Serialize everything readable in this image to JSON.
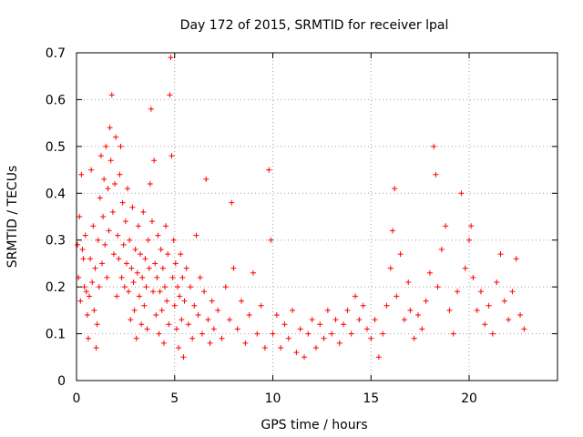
{
  "chart_data": {
    "type": "scatter",
    "title": "Day 172 of 2015, SRMTID for receiver lpal",
    "xlabel": "GPS time / hours",
    "ylabel": "SRMTID / TECUs",
    "xlim": [
      0,
      24.5
    ],
    "ylim": [
      0,
      0.7
    ],
    "x_ticks": [
      0,
      5,
      10,
      15,
      20
    ],
    "x_tick_labels": [
      "0",
      "5",
      "10",
      "15",
      "20"
    ],
    "y_ticks": [
      0,
      0.1,
      0.2,
      0.3,
      0.4,
      0.5,
      0.6,
      0.7
    ],
    "y_tick_labels": [
      "0",
      "0.1",
      "0.2",
      "0.3",
      "0.4",
      "0.5",
      "0.6",
      "0.7"
    ],
    "grid": true,
    "marker": "plus",
    "color": "#ff0000",
    "series": [
      {
        "name": "SRMTID",
        "points": [
          [
            0.05,
            0.29
          ],
          [
            0.1,
            0.22
          ],
          [
            0.15,
            0.35
          ],
          [
            0.2,
            0.17
          ],
          [
            0.25,
            0.44
          ],
          [
            0.3,
            0.28
          ],
          [
            0.35,
            0.26
          ],
          [
            0.4,
            0.2
          ],
          [
            0.45,
            0.31
          ],
          [
            0.5,
            0.19
          ],
          [
            0.55,
            0.14
          ],
          [
            0.6,
            0.09
          ],
          [
            0.65,
            0.18
          ],
          [
            0.7,
            0.26
          ],
          [
            0.75,
            0.45
          ],
          [
            0.8,
            0.21
          ],
          [
            0.85,
            0.33
          ],
          [
            0.9,
            0.15
          ],
          [
            0.95,
            0.24
          ],
          [
            1.0,
            0.07
          ],
          [
            1.05,
            0.12
          ],
          [
            1.1,
            0.3
          ],
          [
            1.15,
            0.2
          ],
          [
            1.2,
            0.39
          ],
          [
            1.25,
            0.48
          ],
          [
            1.3,
            0.25
          ],
          [
            1.35,
            0.35
          ],
          [
            1.4,
            0.43
          ],
          [
            1.45,
            0.29
          ],
          [
            1.5,
            0.5
          ],
          [
            1.55,
            0.22
          ],
          [
            1.6,
            0.41
          ],
          [
            1.65,
            0.32
          ],
          [
            1.7,
            0.54
          ],
          [
            1.75,
            0.47
          ],
          [
            1.8,
            0.61
          ],
          [
            1.85,
            0.36
          ],
          [
            1.9,
            0.27
          ],
          [
            1.95,
            0.42
          ],
          [
            2.0,
            0.52
          ],
          [
            2.05,
            0.18
          ],
          [
            2.1,
            0.31
          ],
          [
            2.15,
            0.26
          ],
          [
            2.2,
            0.44
          ],
          [
            2.25,
            0.5
          ],
          [
            2.3,
            0.22
          ],
          [
            2.35,
            0.38
          ],
          [
            2.4,
            0.29
          ],
          [
            2.45,
            0.2
          ],
          [
            2.5,
            0.34
          ],
          [
            2.55,
            0.25
          ],
          [
            2.6,
            0.41
          ],
          [
            2.65,
            0.19
          ],
          [
            2.7,
            0.3
          ],
          [
            2.75,
            0.13
          ],
          [
            2.8,
            0.24
          ],
          [
            2.85,
            0.37
          ],
          [
            2.9,
            0.21
          ],
          [
            2.95,
            0.15
          ],
          [
            3.0,
            0.28
          ],
          [
            3.05,
            0.09
          ],
          [
            3.1,
            0.23
          ],
          [
            3.15,
            0.33
          ],
          [
            3.2,
            0.18
          ],
          [
            3.25,
            0.27
          ],
          [
            3.3,
            0.12
          ],
          [
            3.35,
            0.22
          ],
          [
            3.4,
            0.36
          ],
          [
            3.45,
            0.16
          ],
          [
            3.5,
            0.26
          ],
          [
            3.55,
            0.2
          ],
          [
            3.6,
            0.11
          ],
          [
            3.65,
            0.3
          ],
          [
            3.7,
            0.24
          ],
          [
            3.75,
            0.42
          ],
          [
            3.8,
            0.58
          ],
          [
            3.85,
            0.34
          ],
          [
            3.9,
            0.19
          ],
          [
            3.95,
            0.47
          ],
          [
            4.0,
            0.25
          ],
          [
            4.05,
            0.14
          ],
          [
            4.1,
            0.22
          ],
          [
            4.15,
            0.31
          ],
          [
            4.2,
            0.1
          ],
          [
            4.25,
            0.19
          ],
          [
            4.3,
            0.28
          ],
          [
            4.35,
            0.15
          ],
          [
            4.4,
            0.24
          ],
          [
            4.45,
            0.08
          ],
          [
            4.5,
            0.2
          ],
          [
            4.55,
            0.33
          ],
          [
            4.6,
            0.17
          ],
          [
            4.65,
            0.27
          ],
          [
            4.7,
            0.12
          ],
          [
            4.75,
            0.61
          ],
          [
            4.8,
            0.69
          ],
          [
            4.85,
            0.48
          ],
          [
            4.9,
            0.22
          ],
          [
            4.95,
            0.3
          ],
          [
            5.0,
            0.16
          ],
          [
            5.05,
            0.25
          ],
          [
            5.1,
            0.11
          ],
          [
            5.15,
            0.2
          ],
          [
            5.2,
            0.07
          ],
          [
            5.25,
            0.18
          ],
          [
            5.3,
            0.27
          ],
          [
            5.35,
            0.13
          ],
          [
            5.4,
            0.22
          ],
          [
            5.45,
            0.05
          ],
          [
            5.5,
            0.17
          ],
          [
            5.6,
            0.24
          ],
          [
            5.7,
            0.12
          ],
          [
            5.8,
            0.2
          ],
          [
            5.9,
            0.09
          ],
          [
            6.0,
            0.16
          ],
          [
            6.1,
            0.31
          ],
          [
            6.2,
            0.14
          ],
          [
            6.3,
            0.22
          ],
          [
            6.4,
            0.1
          ],
          [
            6.5,
            0.19
          ],
          [
            6.6,
            0.43
          ],
          [
            6.7,
            0.13
          ],
          [
            6.8,
            0.08
          ],
          [
            6.9,
            0.17
          ],
          [
            7.0,
            0.11
          ],
          [
            7.2,
            0.15
          ],
          [
            7.4,
            0.09
          ],
          [
            7.6,
            0.2
          ],
          [
            7.8,
            0.13
          ],
          [
            7.9,
            0.38
          ],
          [
            8.0,
            0.24
          ],
          [
            8.2,
            0.11
          ],
          [
            8.4,
            0.17
          ],
          [
            8.6,
            0.08
          ],
          [
            8.8,
            0.14
          ],
          [
            9.0,
            0.23
          ],
          [
            9.2,
            0.1
          ],
          [
            9.4,
            0.16
          ],
          [
            9.6,
            0.07
          ],
          [
            9.8,
            0.45
          ],
          [
            9.9,
            0.3
          ],
          [
            10.0,
            0.1
          ],
          [
            10.2,
            0.14
          ],
          [
            10.4,
            0.07
          ],
          [
            10.6,
            0.12
          ],
          [
            10.8,
            0.09
          ],
          [
            11.0,
            0.15
          ],
          [
            11.2,
            0.06
          ],
          [
            11.4,
            0.11
          ],
          [
            11.6,
            0.05
          ],
          [
            11.8,
            0.1
          ],
          [
            12.0,
            0.13
          ],
          [
            12.2,
            0.07
          ],
          [
            12.4,
            0.12
          ],
          [
            12.6,
            0.09
          ],
          [
            12.8,
            0.15
          ],
          [
            13.0,
            0.1
          ],
          [
            13.2,
            0.13
          ],
          [
            13.4,
            0.08
          ],
          [
            13.6,
            0.12
          ],
          [
            13.8,
            0.15
          ],
          [
            14.0,
            0.1
          ],
          [
            14.2,
            0.18
          ],
          [
            14.4,
            0.13
          ],
          [
            14.6,
            0.16
          ],
          [
            14.8,
            0.11
          ],
          [
            15.0,
            0.09
          ],
          [
            15.2,
            0.13
          ],
          [
            15.4,
            0.05
          ],
          [
            15.6,
            0.1
          ],
          [
            15.8,
            0.16
          ],
          [
            16.0,
            0.24
          ],
          [
            16.1,
            0.32
          ],
          [
            16.2,
            0.41
          ],
          [
            16.3,
            0.18
          ],
          [
            16.5,
            0.27
          ],
          [
            16.7,
            0.13
          ],
          [
            16.9,
            0.21
          ],
          [
            17.0,
            0.15
          ],
          [
            17.2,
            0.09
          ],
          [
            17.4,
            0.14
          ],
          [
            17.6,
            0.11
          ],
          [
            17.8,
            0.17
          ],
          [
            18.0,
            0.23
          ],
          [
            18.2,
            0.5
          ],
          [
            18.3,
            0.44
          ],
          [
            18.4,
            0.2
          ],
          [
            18.6,
            0.28
          ],
          [
            18.8,
            0.33
          ],
          [
            19.0,
            0.15
          ],
          [
            19.2,
            0.1
          ],
          [
            19.4,
            0.19
          ],
          [
            19.6,
            0.4
          ],
          [
            19.8,
            0.24
          ],
          [
            20.0,
            0.3
          ],
          [
            20.1,
            0.33
          ],
          [
            20.2,
            0.22
          ],
          [
            20.4,
            0.15
          ],
          [
            20.6,
            0.19
          ],
          [
            20.8,
            0.12
          ],
          [
            21.0,
            0.16
          ],
          [
            21.2,
            0.1
          ],
          [
            21.4,
            0.21
          ],
          [
            21.6,
            0.27
          ],
          [
            21.8,
            0.17
          ],
          [
            22.0,
            0.13
          ],
          [
            22.2,
            0.19
          ],
          [
            22.4,
            0.26
          ],
          [
            22.6,
            0.14
          ],
          [
            22.8,
            0.11
          ]
        ]
      }
    ]
  }
}
